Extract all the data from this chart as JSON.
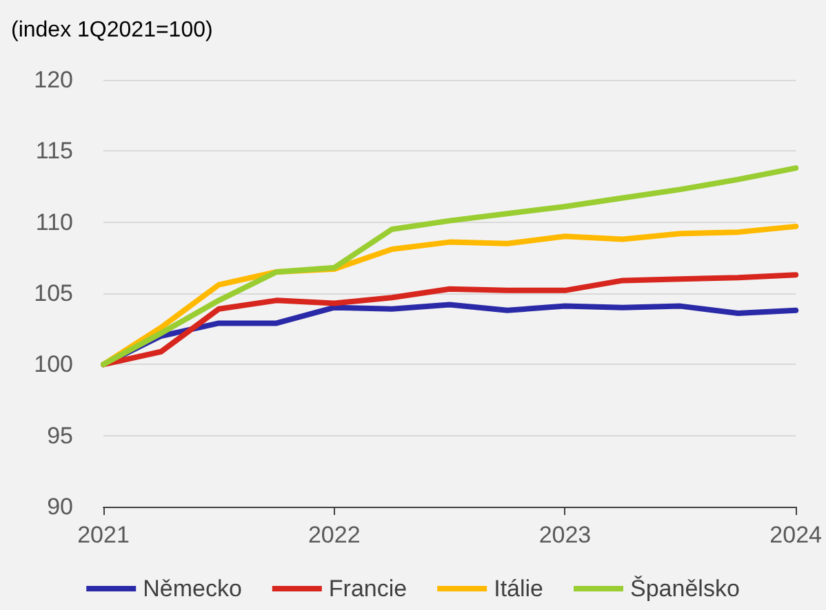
{
  "chart_data": {
    "type": "line",
    "ylabel": "(index 1Q2021=100)",
    "x": [
      2021,
      2021.25,
      2021.5,
      2021.75,
      2022,
      2022.25,
      2022.5,
      2022.75,
      2023,
      2023.25,
      2023.5,
      2023.75,
      2024
    ],
    "xlim": [
      2021,
      2024
    ],
    "xticks": [
      2021,
      2022,
      2023,
      2024
    ],
    "ylim": [
      90,
      120
    ],
    "yticks": [
      90,
      95,
      100,
      105,
      110,
      115,
      120
    ],
    "grid": "y",
    "legend": "bottom",
    "marker": "none",
    "line_style": "solid",
    "series": [
      {
        "name": "Německo",
        "color": "#2a2aa8",
        "values": [
          100,
          102.0,
          102.9,
          102.9,
          104.0,
          103.9,
          104.2,
          103.8,
          104.1,
          104.0,
          104.1,
          103.6,
          103.8
        ]
      },
      {
        "name": "Francie",
        "color": "#d7261e",
        "values": [
          100,
          100.9,
          103.9,
          104.5,
          104.3,
          104.7,
          105.3,
          105.2,
          105.2,
          105.9,
          106.0,
          106.1,
          106.3
        ]
      },
      {
        "name": "Itálie",
        "color": "#ffb900",
        "values": [
          100,
          102.6,
          105.6,
          106.5,
          106.7,
          108.1,
          108.6,
          108.5,
          109.0,
          108.8,
          109.2,
          109.3,
          109.7
        ]
      },
      {
        "name": "Španělsko",
        "color": "#9acd32",
        "values": [
          100,
          102.2,
          104.5,
          106.5,
          106.8,
          109.5,
          110.1,
          110.6,
          111.1,
          111.7,
          112.3,
          113.0,
          113.8
        ]
      }
    ]
  }
}
